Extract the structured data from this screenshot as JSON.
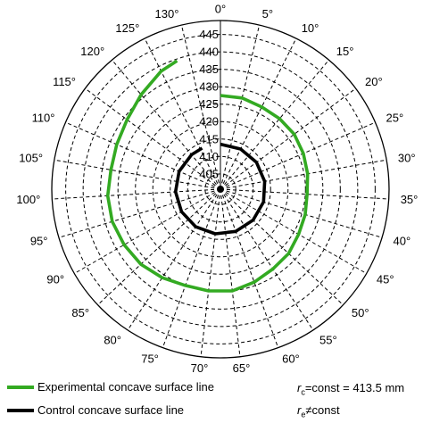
{
  "chart_data": {
    "type": "polar-line",
    "angle_unit": "deg",
    "angle_ticks": [
      0,
      5,
      10,
      15,
      20,
      25,
      30,
      35,
      40,
      45,
      50,
      55,
      60,
      65,
      70,
      75,
      80,
      85,
      90,
      95,
      100,
      105,
      110,
      115,
      120,
      125,
      130
    ],
    "angle_labels": [
      "0°",
      "5°",
      "10°",
      "15°",
      "20°",
      "25°",
      "30°",
      "35°",
      "40°",
      "45°",
      "50°",
      "55°",
      "60°",
      "65°",
      "70°",
      "75°",
      "80°",
      "85°",
      "90°",
      "95°",
      "100°",
      "105°",
      "110°",
      "115°",
      "120°",
      "125°",
      "130°"
    ],
    "radial_ticks": [
      405,
      410,
      415,
      420,
      425,
      430,
      435,
      440,
      445
    ],
    "radial_labels": [
      "405",
      "410",
      "415",
      "420",
      "425",
      "430",
      "435",
      "440",
      "445"
    ],
    "rlim": [
      400.6,
      449
    ],
    "grid": true,
    "series": [
      {
        "name": "Experimental concave surface line",
        "color": "#33aa22",
        "points": [
          [
            0,
            427.5
          ],
          [
            5,
            427.5
          ],
          [
            10,
            427
          ],
          [
            15,
            427
          ],
          [
            20,
            427
          ],
          [
            25,
            426.5
          ],
          [
            30,
            426
          ],
          [
            35,
            425.5
          ],
          [
            40,
            426
          ],
          [
            45,
            426.5
          ],
          [
            50,
            427.5
          ],
          [
            55,
            428
          ],
          [
            60,
            429
          ],
          [
            65,
            430
          ],
          [
            70,
            430
          ],
          [
            75,
            430
          ],
          [
            80,
            431
          ],
          [
            85,
            432
          ],
          [
            90,
            432.5
          ],
          [
            95,
            433
          ],
          [
            100,
            433
          ],
          [
            105,
            432.5
          ],
          [
            110,
            433
          ],
          [
            115,
            434
          ],
          [
            120,
            436
          ],
          [
            125,
            438.5
          ],
          [
            128,
            439.5
          ]
        ]
      },
      {
        "name": "Control concave surface line",
        "color": "#000000",
        "points": [
          [
            0,
            413.5
          ],
          [
            10,
            413.5
          ],
          [
            20,
            413.5
          ],
          [
            30,
            413.5
          ],
          [
            40,
            413.5
          ],
          [
            50,
            413.5
          ],
          [
            60,
            413.5
          ],
          [
            70,
            413.5
          ],
          [
            80,
            413.5
          ],
          [
            90,
            413.5
          ],
          [
            100,
            413.5
          ],
          [
            110,
            413.5
          ],
          [
            120,
            413.5
          ],
          [
            126,
            413.5
          ]
        ]
      }
    ]
  },
  "legend": {
    "items": [
      {
        "label": "Experimental concave surface line",
        "color": "#33aa22"
      },
      {
        "label": "Control concave surface line",
        "color": "#000000"
      }
    ]
  },
  "notes": {
    "rc_symbol": "r",
    "rc_sub": "c",
    "rc_text": "=const = 413.5 mm",
    "re_symbol": "r",
    "re_sub": "e",
    "re_text": "≠const"
  }
}
